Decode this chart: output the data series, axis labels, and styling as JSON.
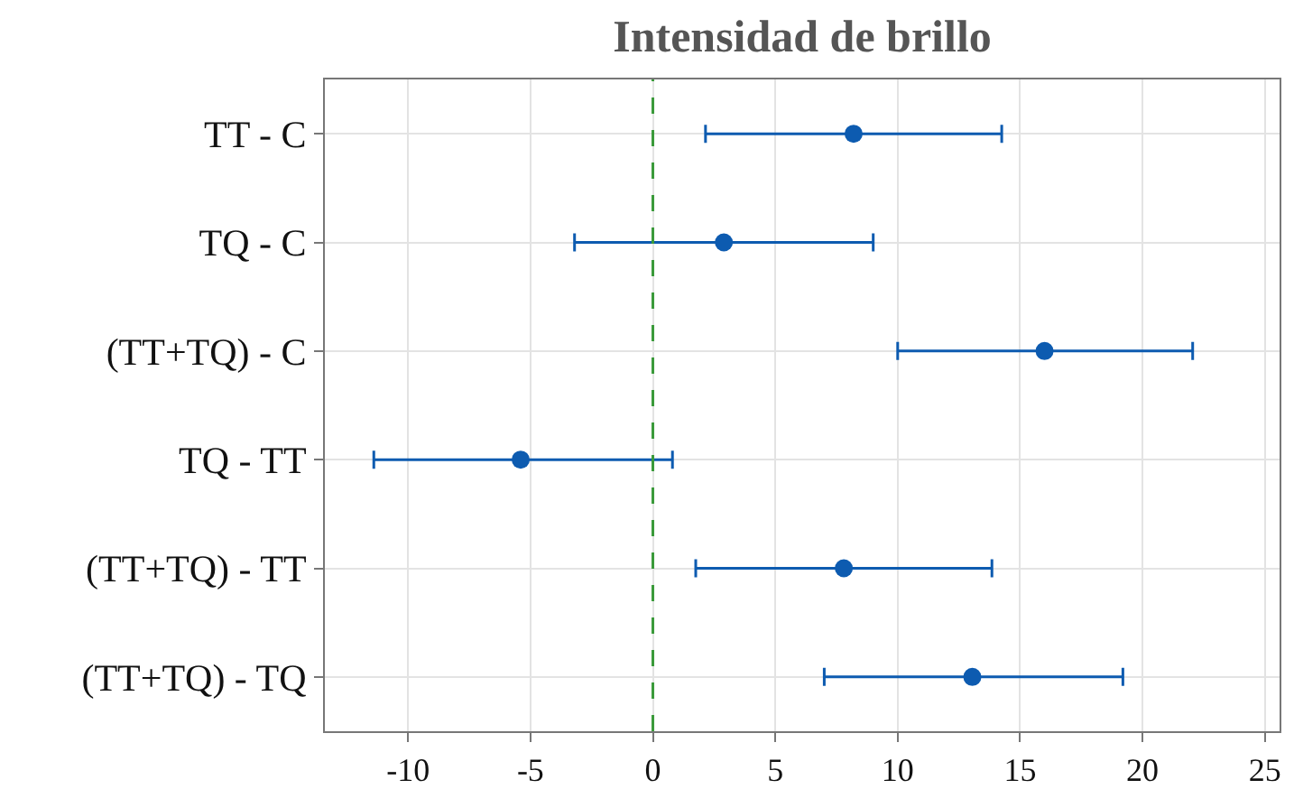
{
  "chart_data": {
    "type": "scatter",
    "title": "Intensidad de brillo",
    "categories": [
      "TT - C",
      "TQ - C",
      "(TT+TQ) - C",
      "TQ - TT",
      "(TT+TQ) - TT",
      "(TT+TQ) - TQ"
    ],
    "orientation": "horizontal",
    "color": "#0d5bb0",
    "values": [
      8.2,
      2.9,
      16.0,
      -5.4,
      7.8,
      13.05
    ],
    "errors": [
      [
        2.15,
        14.25
      ],
      [
        -3.2,
        9.0
      ],
      [
        10.0,
        22.05
      ],
      [
        -11.4,
        0.8
      ],
      [
        1.75,
        13.85
      ],
      [
        7.0,
        19.2
      ]
    ],
    "xlim": [
      -13.4,
      25.6
    ],
    "xticks": [
      -10,
      -5,
      0,
      5,
      10,
      15,
      20,
      25
    ],
    "ref_lines": [
      {
        "axis": "x",
        "value": 0,
        "color": "#3a9a3a",
        "line_style": "dashed"
      }
    ],
    "grid": true,
    "marker": "circle"
  }
}
